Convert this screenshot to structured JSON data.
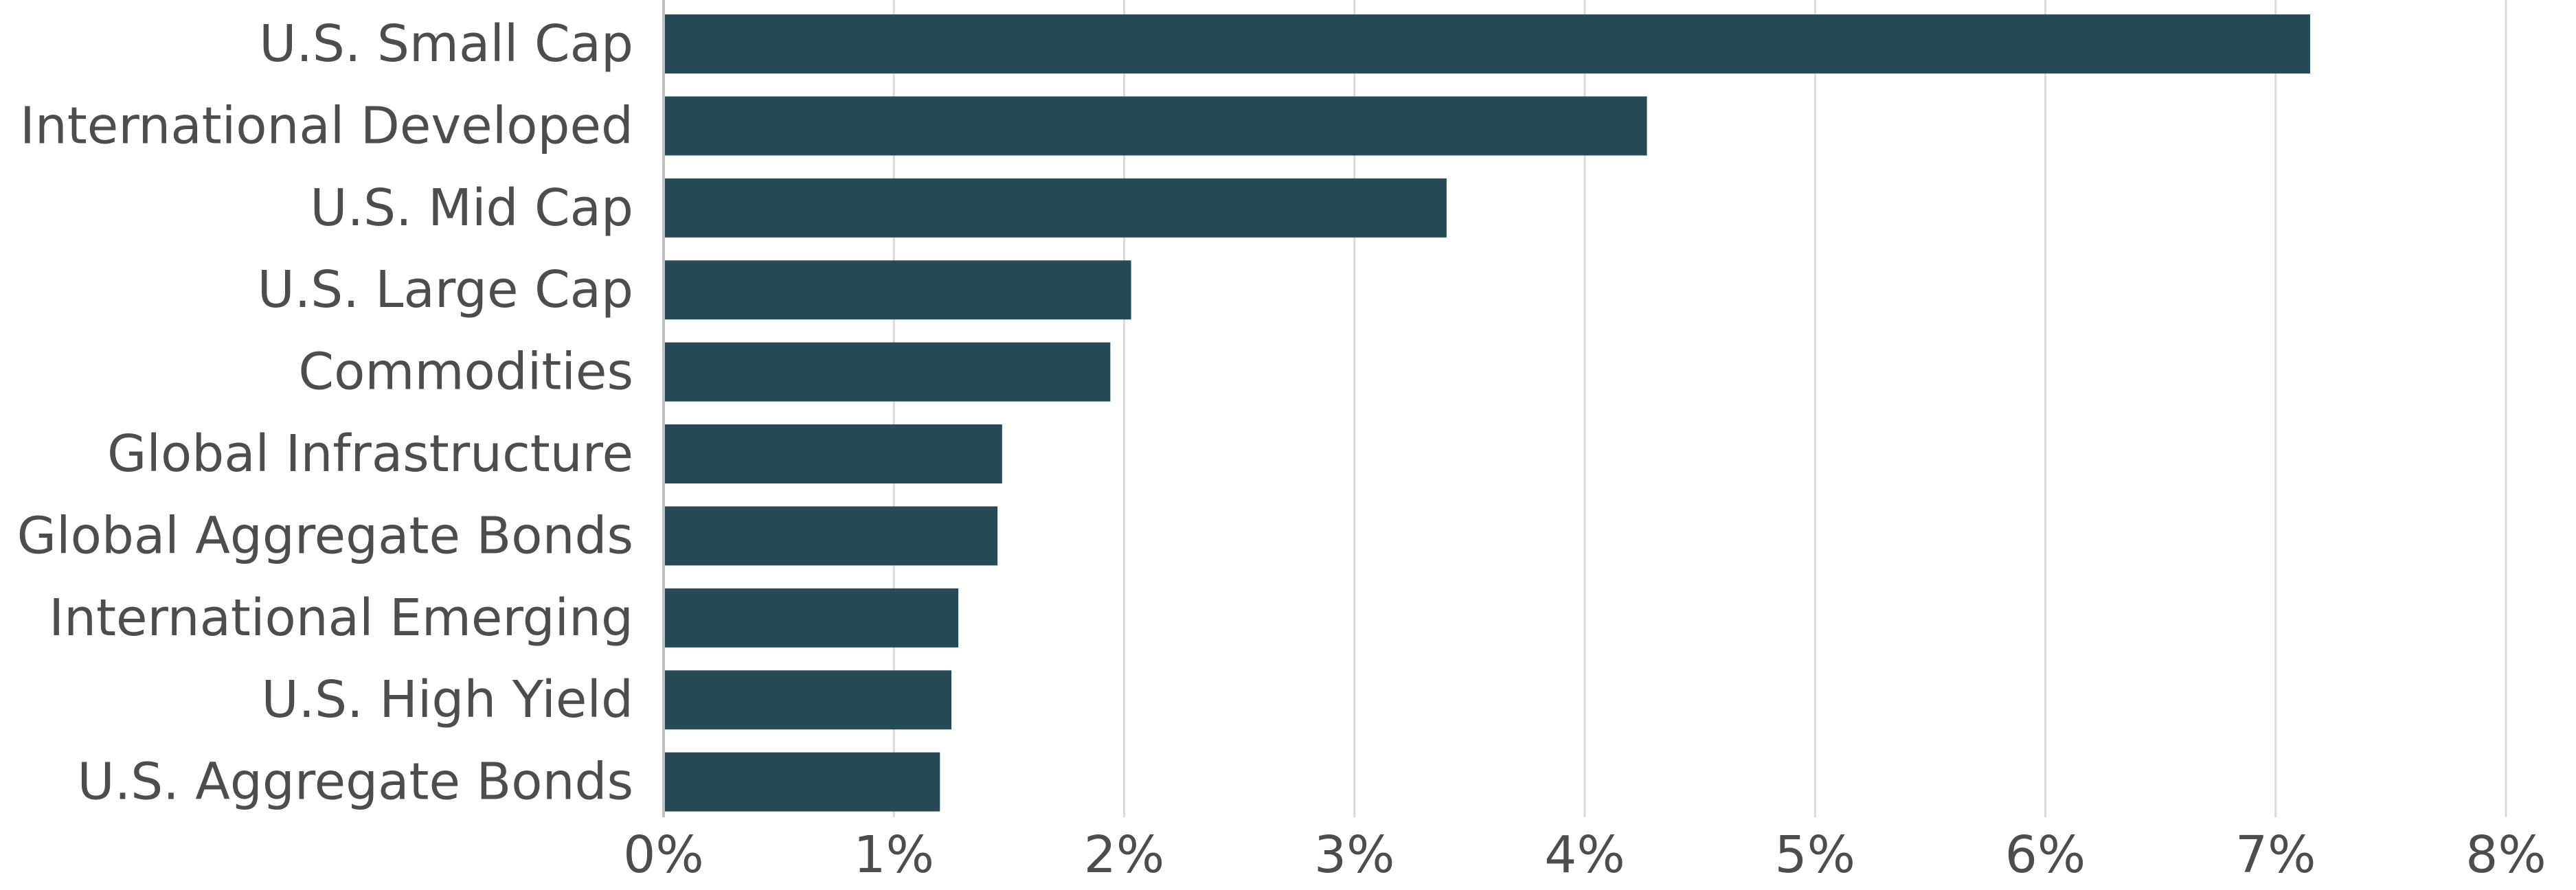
{
  "chart_data": {
    "type": "bar",
    "orientation": "horizontal",
    "categories": [
      "U.S. Small Cap",
      "International Developed",
      "U.S. Mid Cap",
      "U.S. Large Cap",
      "Commodities",
      "Global Infrastructure",
      "Global Aggregate Bonds",
      "International Emerging",
      "U.S. High Yield",
      "U.S. Aggregate Bonds"
    ],
    "values": [
      7.15,
      4.27,
      3.4,
      2.03,
      1.94,
      1.47,
      1.45,
      1.28,
      1.25,
      1.2
    ],
    "title": "",
    "xlabel": "",
    "ylabel": "",
    "xlim": [
      0,
      8
    ],
    "xticks": [
      "0%",
      "1%",
      "2%",
      "3%",
      "4%",
      "5%",
      "6%",
      "7%",
      "8%"
    ],
    "grid": true,
    "legend": "none",
    "colors": {
      "bar": "#264b57",
      "grid": "#d9d9d9",
      "axis": "#bfbfbf",
      "text": "#4d4d4d"
    }
  }
}
